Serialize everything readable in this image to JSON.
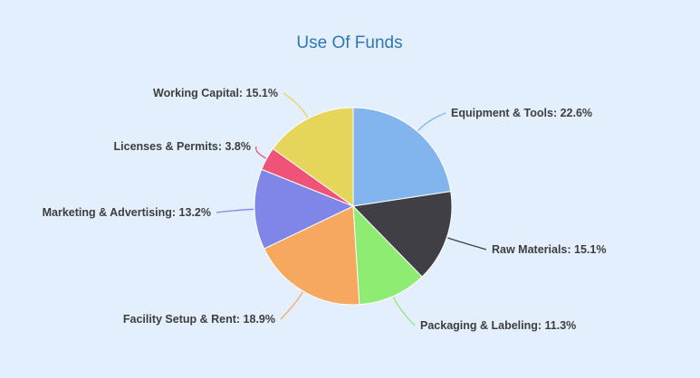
{
  "chart_data": {
    "type": "pie",
    "title": "Use Of Funds",
    "start_angle_deg": 0,
    "direction": "clockwise",
    "slices": [
      {
        "name": "Equipment & Tools",
        "value": 22.6,
        "label": "Equipment & Tools: 22.6%",
        "color": "#82b4ee"
      },
      {
        "name": "Raw Materials",
        "value": 15.1,
        "label": "Raw Materials: 15.1%",
        "color": "#3f3f45"
      },
      {
        "name": "Packaging & Labeling",
        "value": 11.3,
        "label": "Packaging & Labeling: 11.3%",
        "color": "#8eec73"
      },
      {
        "name": "Facility Setup & Rent",
        "value": 18.9,
        "label": "Facility Setup & Rent: 18.9%",
        "color": "#f7a85f"
      },
      {
        "name": "Marketing & Advertising",
        "value": 13.2,
        "label": "Marketing & Advertising: 13.2%",
        "color": "#8086e8"
      },
      {
        "name": "Licenses & Permits",
        "value": 3.8,
        "label": "Licenses & Permits: 3.8%",
        "color": "#ef5478"
      },
      {
        "name": "Working Capital",
        "value": 15.1,
        "label": "Working Capital: 15.1%",
        "color": "#e5d55a"
      }
    ],
    "legend": "none",
    "background": "#e3effc",
    "title_color": "#2f76b9"
  }
}
